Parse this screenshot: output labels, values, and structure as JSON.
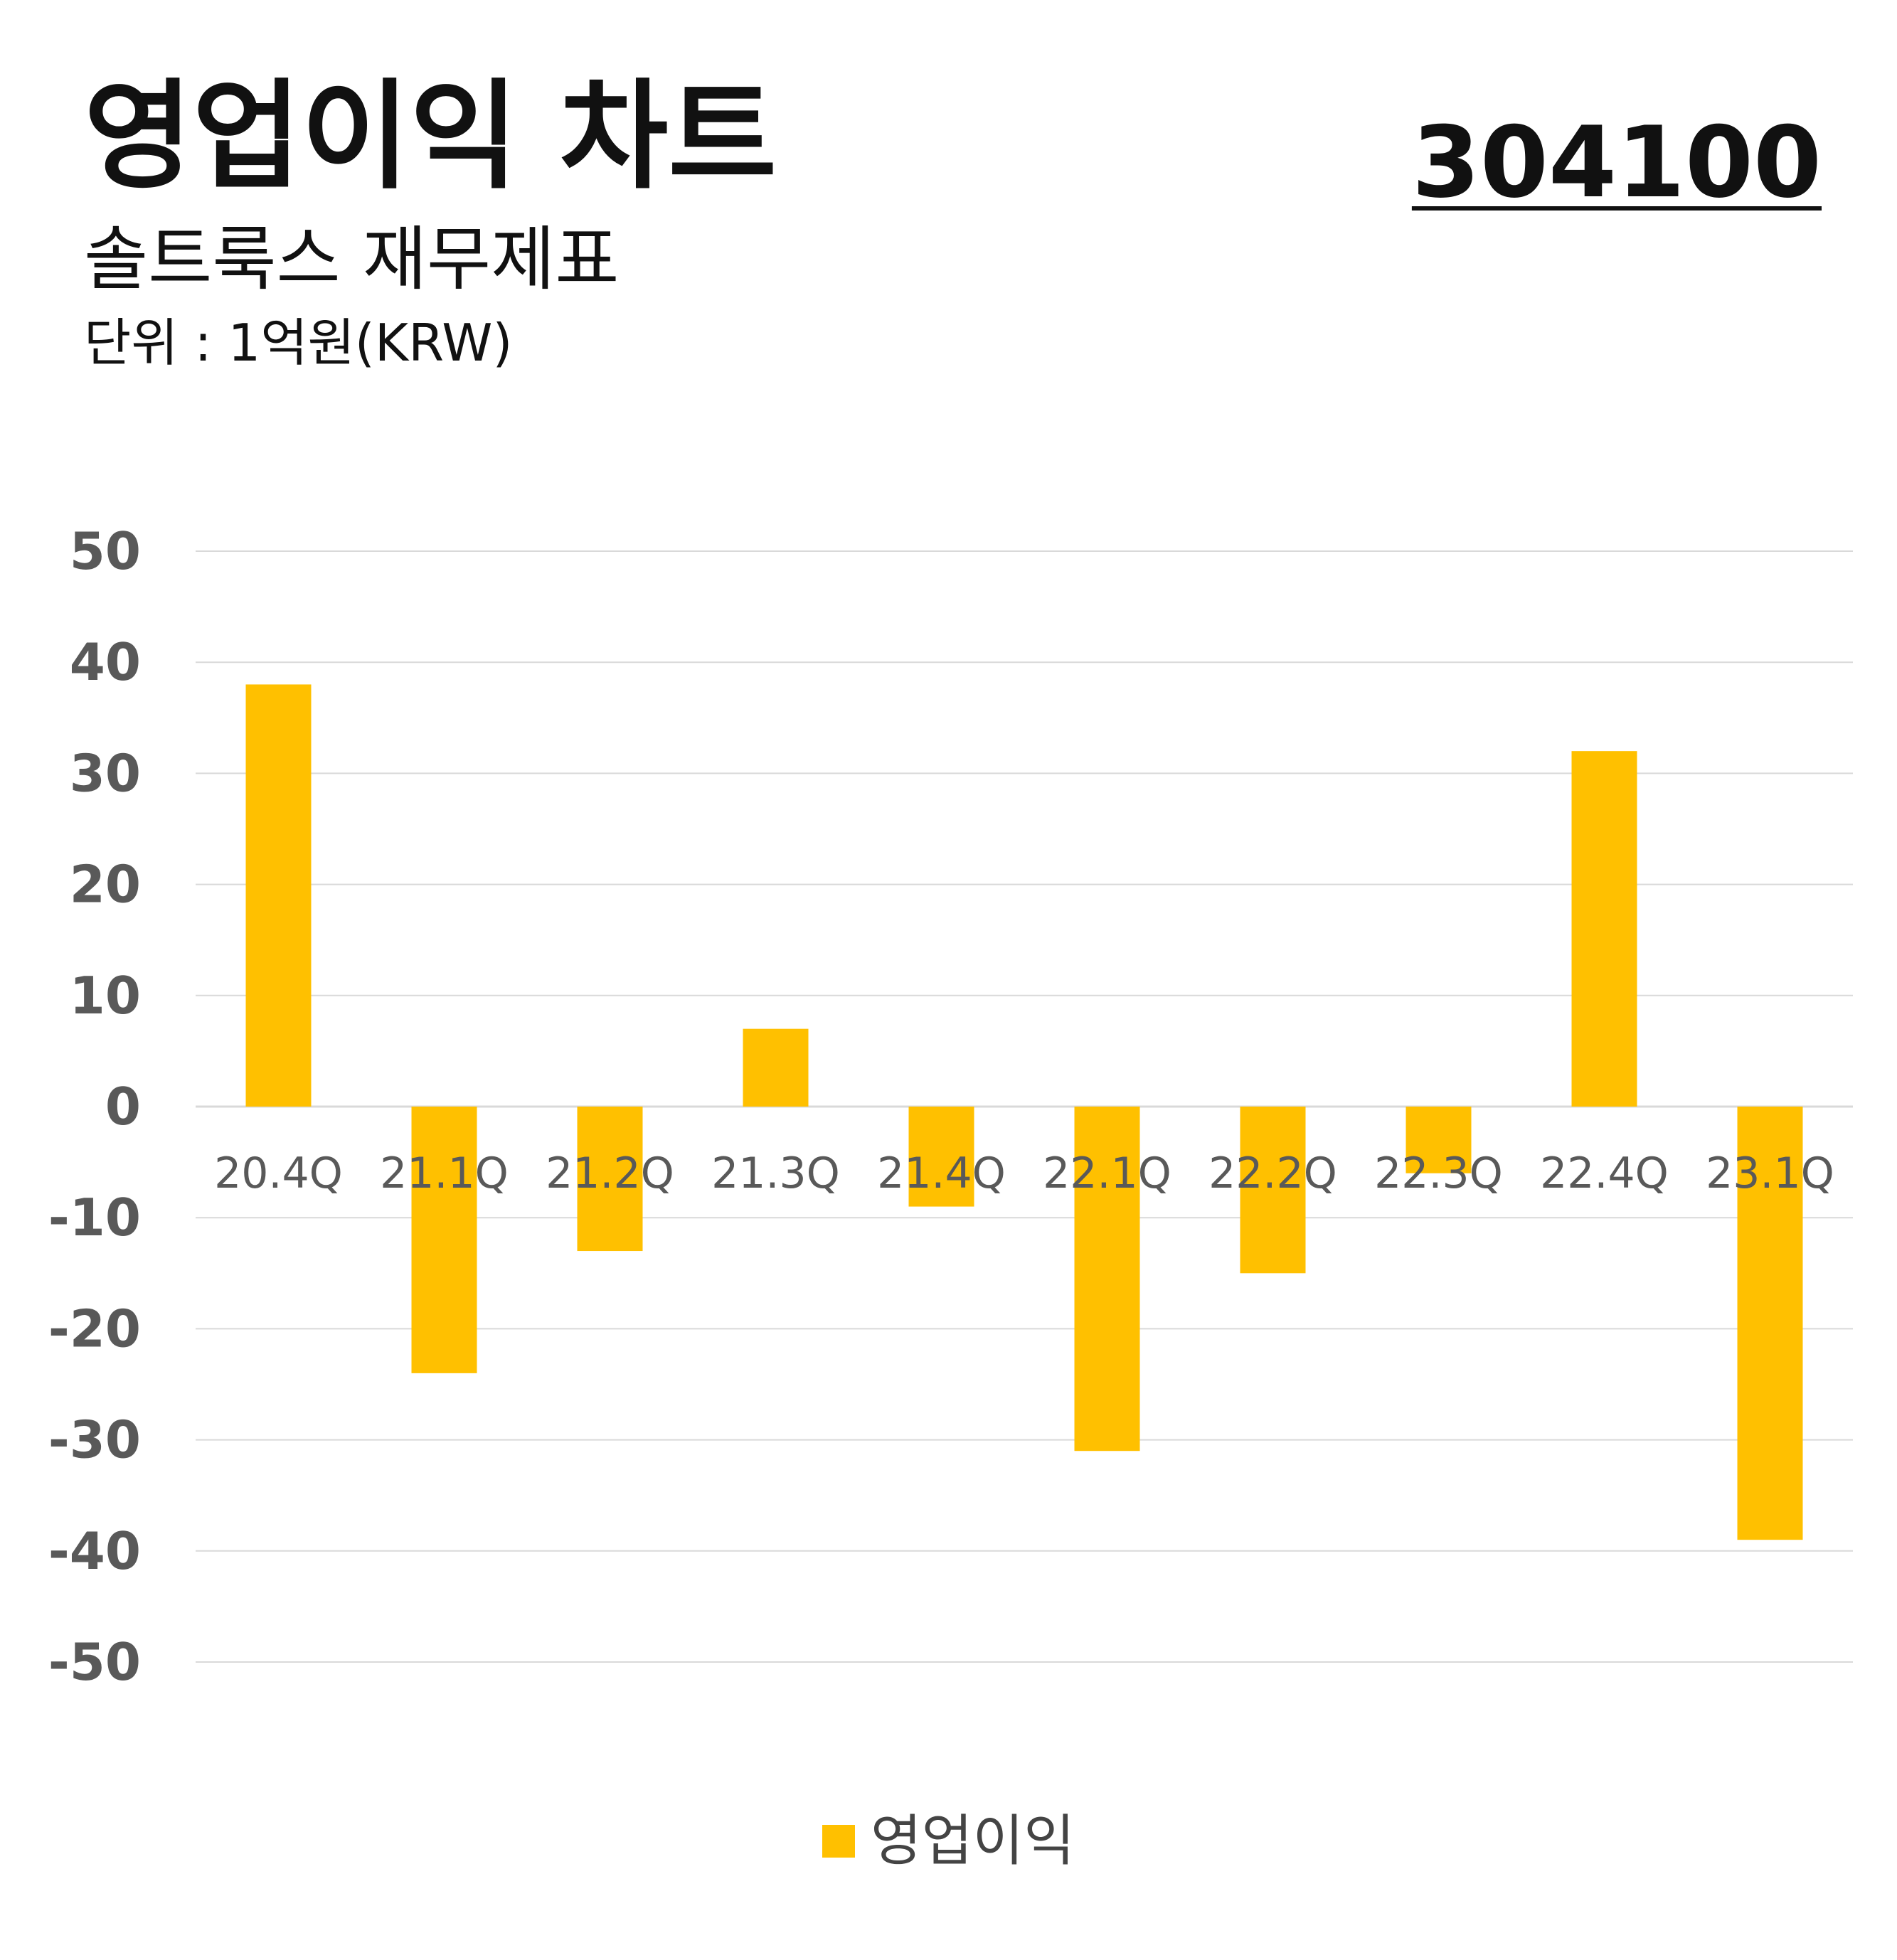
{
  "header": {
    "title": "영업이익 차트",
    "code": "304100",
    "subtitle": "솔트룩스 재무제표",
    "unit": "단위 : 1억원(KRW)"
  },
  "colors": {
    "bar": "#FFC000",
    "grid": "#D9D9D9",
    "axis_text": "#595959",
    "category_text": "#595959"
  },
  "chart_data": {
    "type": "bar",
    "title": "영업이익 차트",
    "categories": [
      "20.4Q",
      "21.1Q",
      "21.2Q",
      "21.3Q",
      "21.4Q",
      "22.1Q",
      "22.2Q",
      "22.3Q",
      "22.4Q",
      "23.1Q"
    ],
    "series": [
      {
        "name": "영업이익",
        "values": [
          38,
          -24,
          -13,
          7,
          -9,
          -31,
          -15,
          -6,
          32,
          -39
        ]
      }
    ],
    "ylim": [
      -50,
      50
    ],
    "yticks": [
      50,
      40,
      30,
      20,
      10,
      0,
      -10,
      -20,
      -30,
      -40,
      -50
    ],
    "grid": true,
    "legend": "bottom"
  }
}
